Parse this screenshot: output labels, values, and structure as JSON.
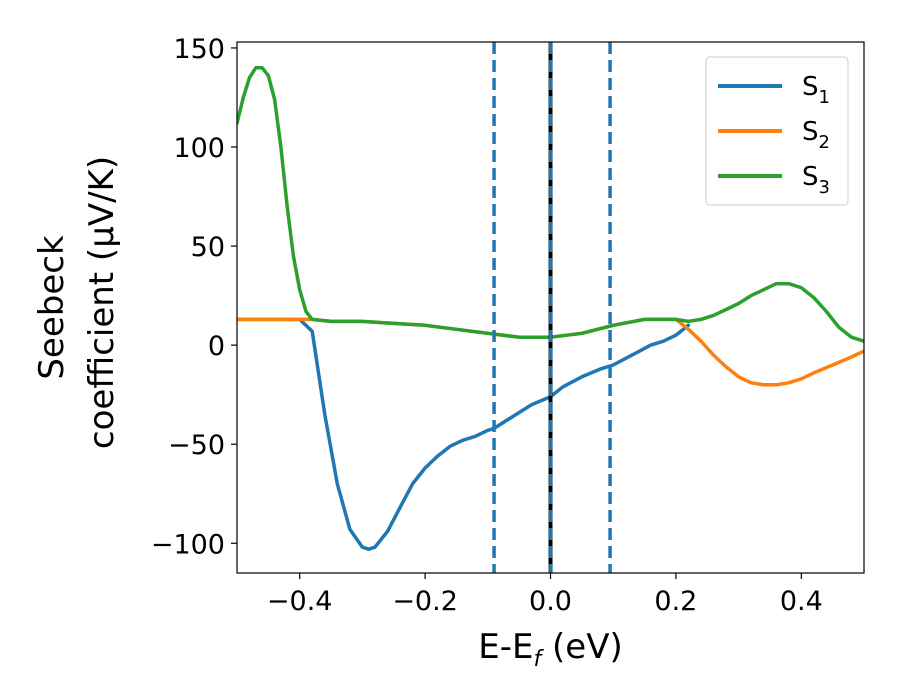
{
  "chart_data": {
    "type": "line",
    "xlabel": {
      "main": "E-E",
      "sub": "f",
      "unit": " (eV)"
    },
    "ylabel": {
      "line1": "Seebeck",
      "line2": "coefficient  (μV/K)"
    },
    "xlim": [
      -0.5,
      0.5
    ],
    "ylim": [
      -115,
      153
    ],
    "xticks": [
      -0.4,
      -0.2,
      0.0,
      0.2,
      0.4
    ],
    "xtick_labels": [
      "−0.4",
      "−0.2",
      "0.0",
      "0.2",
      "0.4"
    ],
    "yticks": [
      -100,
      -50,
      0,
      50,
      100,
      150
    ],
    "ytick_labels": [
      "−100",
      "−50",
      "0",
      "50",
      "100",
      "150"
    ],
    "grid": false,
    "legend_position": "top-right",
    "vlines": [
      {
        "x": -0.09,
        "style": "dashed",
        "color": "#1f77b4"
      },
      {
        "x": 0.0,
        "style": "solid",
        "color": "#000000"
      },
      {
        "x": 0.0,
        "style": "dashed",
        "color": "#1f77b4"
      },
      {
        "x": 0.095,
        "style": "dashed",
        "color": "#1f77b4"
      }
    ],
    "series": [
      {
        "name": "S",
        "sub": "1",
        "color": "#1f77b4",
        "x": [
          -0.5,
          -0.45,
          -0.4,
          -0.38,
          -0.36,
          -0.34,
          -0.32,
          -0.3,
          -0.29,
          -0.28,
          -0.26,
          -0.24,
          -0.22,
          -0.2,
          -0.18,
          -0.16,
          -0.14,
          -0.12,
          -0.1,
          -0.09,
          -0.07,
          -0.05,
          -0.03,
          0.0,
          0.02,
          0.05,
          0.08,
          0.1,
          0.13,
          0.16,
          0.18,
          0.2,
          0.22
        ],
        "y": [
          13,
          13,
          13,
          7,
          -35,
          -70,
          -93,
          -102,
          -103,
          -102,
          -94,
          -82,
          -70,
          -62,
          -56,
          -51,
          -48,
          -46,
          -43,
          -42,
          -38,
          -34,
          -30,
          -26,
          -21,
          -16,
          -12,
          -10,
          -5,
          0,
          2,
          5,
          10
        ]
      },
      {
        "name": "S",
        "sub": "2",
        "color": "#ff7f0e",
        "x": [
          -0.5,
          -0.45,
          -0.4,
          -0.38,
          -0.35,
          -0.3,
          -0.25,
          -0.2,
          -0.15,
          -0.1,
          -0.05,
          0.0,
          0.05,
          0.1,
          0.15,
          0.2,
          0.22,
          0.24,
          0.26,
          0.28,
          0.3,
          0.32,
          0.34,
          0.36,
          0.38,
          0.4,
          0.42,
          0.45,
          0.48,
          0.5
        ],
        "y": [
          13,
          13,
          13,
          13,
          12,
          12,
          11,
          10,
          8,
          6,
          4,
          4,
          6,
          10,
          13,
          13,
          8,
          2,
          -5,
          -11,
          -16,
          -19,
          -20,
          -20,
          -19,
          -17,
          -14,
          -10,
          -6,
          -3
        ]
      },
      {
        "name": "S",
        "sub": "3",
        "color": "#2ca02c",
        "x": [
          -0.5,
          -0.49,
          -0.48,
          -0.47,
          -0.46,
          -0.45,
          -0.44,
          -0.43,
          -0.42,
          -0.41,
          -0.4,
          -0.39,
          -0.38,
          -0.35,
          -0.3,
          -0.25,
          -0.2,
          -0.15,
          -0.1,
          -0.05,
          0.0,
          0.05,
          0.1,
          0.15,
          0.2,
          0.22,
          0.24,
          0.26,
          0.28,
          0.3,
          0.32,
          0.34,
          0.36,
          0.38,
          0.4,
          0.42,
          0.44,
          0.46,
          0.48,
          0.5
        ],
        "y": [
          112,
          125,
          135,
          140,
          140,
          136,
          124,
          100,
          70,
          45,
          28,
          17,
          13,
          12,
          12,
          11,
          10,
          8,
          6,
          4,
          4,
          6,
          10,
          13,
          13,
          12,
          13,
          15,
          18,
          21,
          25,
          28,
          31,
          31,
          29,
          24,
          17,
          9,
          4,
          2
        ]
      }
    ]
  }
}
